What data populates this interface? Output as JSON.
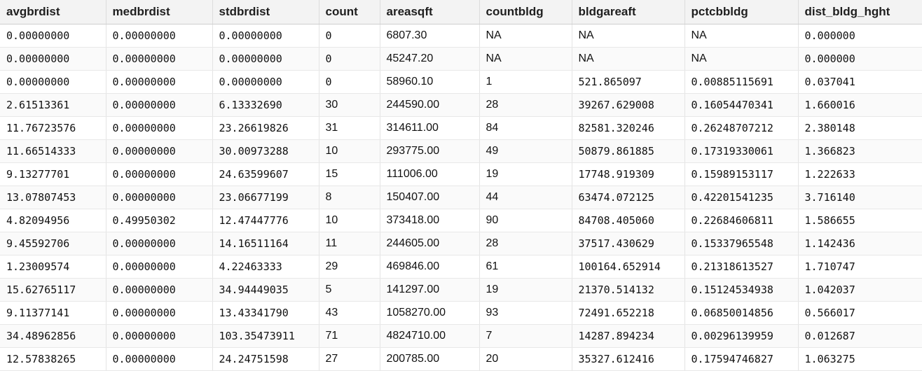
{
  "table": {
    "columns": [
      "avgbrdist",
      "medbrdist",
      "stdbrdist",
      "count",
      "areasqft",
      "countbldg",
      "bldgareaft",
      "pctcbbldg",
      "dist_bldg_hght"
    ],
    "rows": [
      [
        "0.00000000",
        "0.00000000",
        "0.00000000",
        "0",
        "6807.30",
        "NA",
        "NA",
        "NA",
        "0.000000"
      ],
      [
        "0.00000000",
        "0.00000000",
        "0.00000000",
        "0",
        "45247.20",
        "NA",
        "NA",
        "NA",
        "0.000000"
      ],
      [
        "0.00000000",
        "0.00000000",
        "0.00000000",
        "0",
        "58960.10",
        "1",
        "521.865097",
        "0.00885115691",
        "0.037041"
      ],
      [
        "2.61513361",
        "0.00000000",
        "6.13332690",
        "30",
        "244590.00",
        "28",
        "39267.629008",
        "0.16054470341",
        "1.660016"
      ],
      [
        "11.76723576",
        "0.00000000",
        "23.26619826",
        "31",
        "314611.00",
        "84",
        "82581.320246",
        "0.26248707212",
        "2.380148"
      ],
      [
        "11.66514333",
        "0.00000000",
        "30.00973288",
        "10",
        "293775.00",
        "49",
        "50879.861885",
        "0.17319330061",
        "1.366823"
      ],
      [
        "9.13277701",
        "0.00000000",
        "24.63599607",
        "15",
        "111006.00",
        "19",
        "17748.919309",
        "0.15989153117",
        "1.222633"
      ],
      [
        "13.07807453",
        "0.00000000",
        "23.06677199",
        "8",
        "150407.00",
        "44",
        "63474.072125",
        "0.42201541235",
        "3.716140"
      ],
      [
        "4.82094956",
        "0.49950302",
        "12.47447776",
        "10",
        "373418.00",
        "90",
        "84708.405060",
        "0.22684606811",
        "1.586655"
      ],
      [
        "9.45592706",
        "0.00000000",
        "14.16511164",
        "11",
        "244605.00",
        "28",
        "37517.430629",
        "0.15337965548",
        "1.142436"
      ],
      [
        "1.23009574",
        "0.00000000",
        "4.22463333",
        "29",
        "469846.00",
        "61",
        "100164.652914",
        "0.21318613527",
        "1.710747"
      ],
      [
        "15.62765117",
        "0.00000000",
        "34.94449035",
        "5",
        "141297.00",
        "19",
        "21370.514132",
        "0.15124534938",
        "1.042037"
      ],
      [
        "9.11377141",
        "0.00000000",
        "13.43341790",
        "43",
        "1058270.00",
        "93",
        "72491.652218",
        "0.06850014856",
        "0.566017"
      ],
      [
        "34.48962856",
        "0.00000000",
        "103.35473911",
        "71",
        "4824710.00",
        "7",
        "14287.894234",
        "0.00296139959",
        "0.012687"
      ],
      [
        "12.57838265",
        "0.00000000",
        "24.24751598",
        "27",
        "200785.00",
        "20",
        "35327.612416",
        "0.17594746827",
        "1.063275"
      ]
    ]
  }
}
